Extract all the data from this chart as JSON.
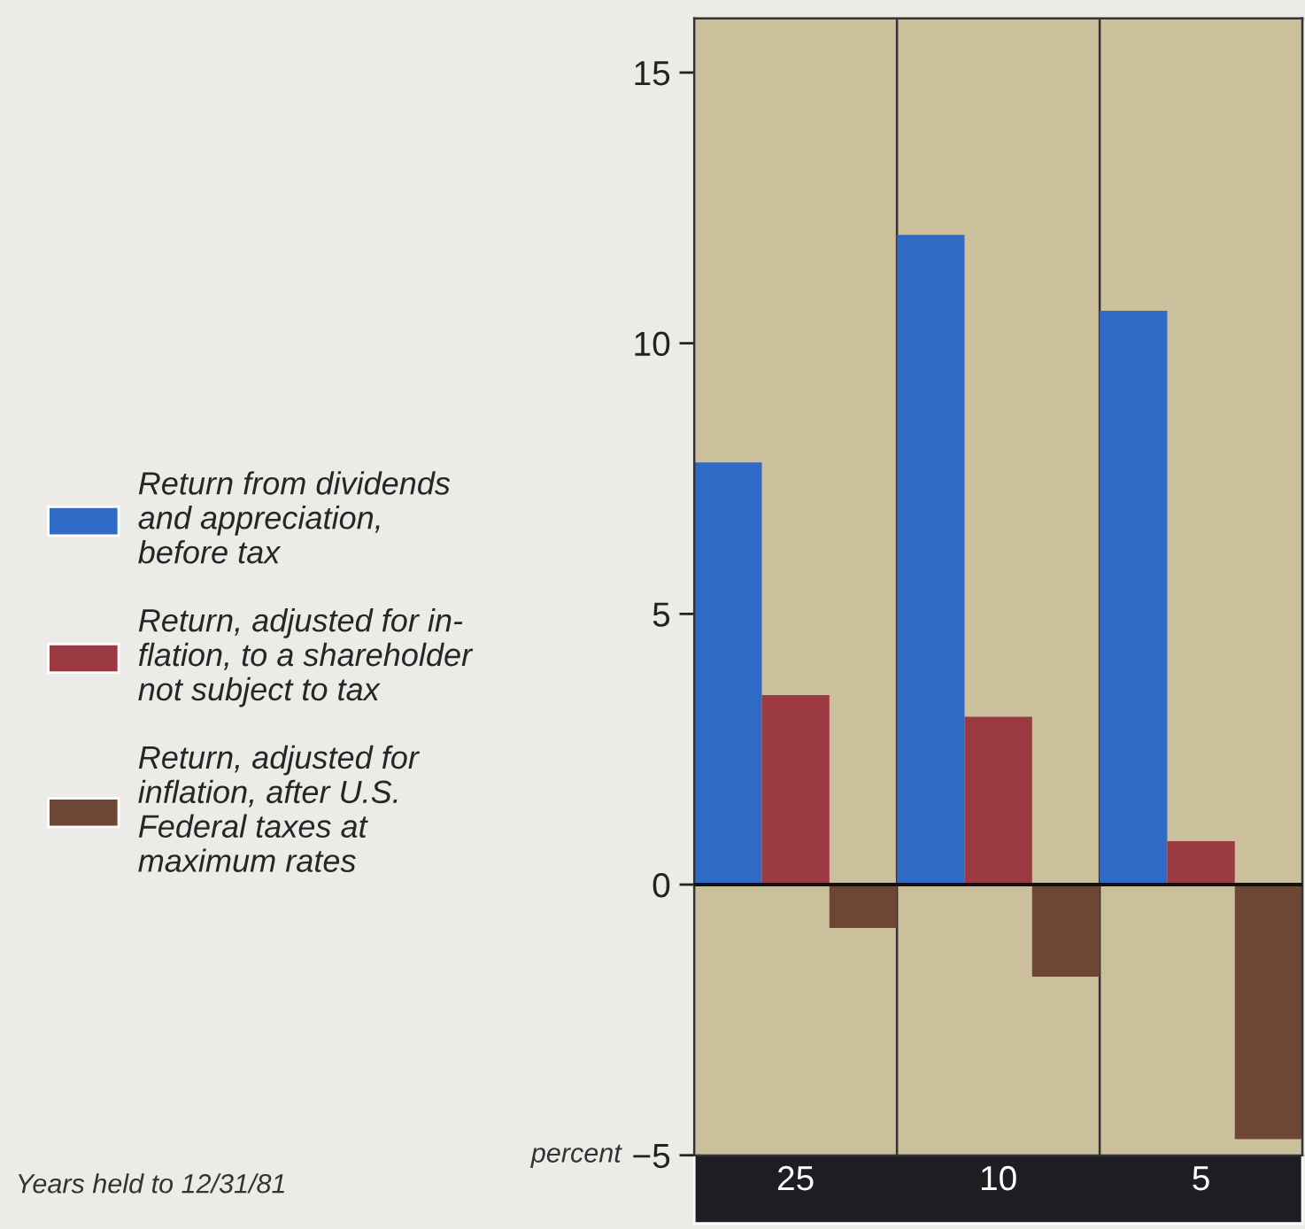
{
  "chart_data": {
    "type": "bar",
    "categories": [
      "25",
      "10",
      "5"
    ],
    "series": [
      {
        "name": "Return from dividends\nand appreciation,\nbefore tax",
        "color": "#2f6bc6",
        "values": [
          7.8,
          12.0,
          10.6
        ]
      },
      {
        "name": "Return, adjusted for in-\nflation, to a shareholder\nnot subject to tax",
        "color": "#9b3a42",
        "values": [
          3.5,
          3.1,
          0.8
        ]
      },
      {
        "name": "Return, adjusted for\ninflation, after U.S.\nFederal taxes at\nmaximum rates",
        "color": "#6e4634",
        "values": [
          -0.8,
          -1.7,
          -4.7
        ]
      }
    ],
    "annotations": [
      "Years held to 12/31/81"
    ],
    "ylabel": "percent",
    "ylim": [
      -5,
      16
    ],
    "yticks": [
      -5,
      0,
      5,
      10,
      15
    ],
    "ref_lines": [
      {
        "axis": "y",
        "value": 0,
        "color": "#111111"
      }
    ],
    "legend": "left",
    "grid": false
  }
}
